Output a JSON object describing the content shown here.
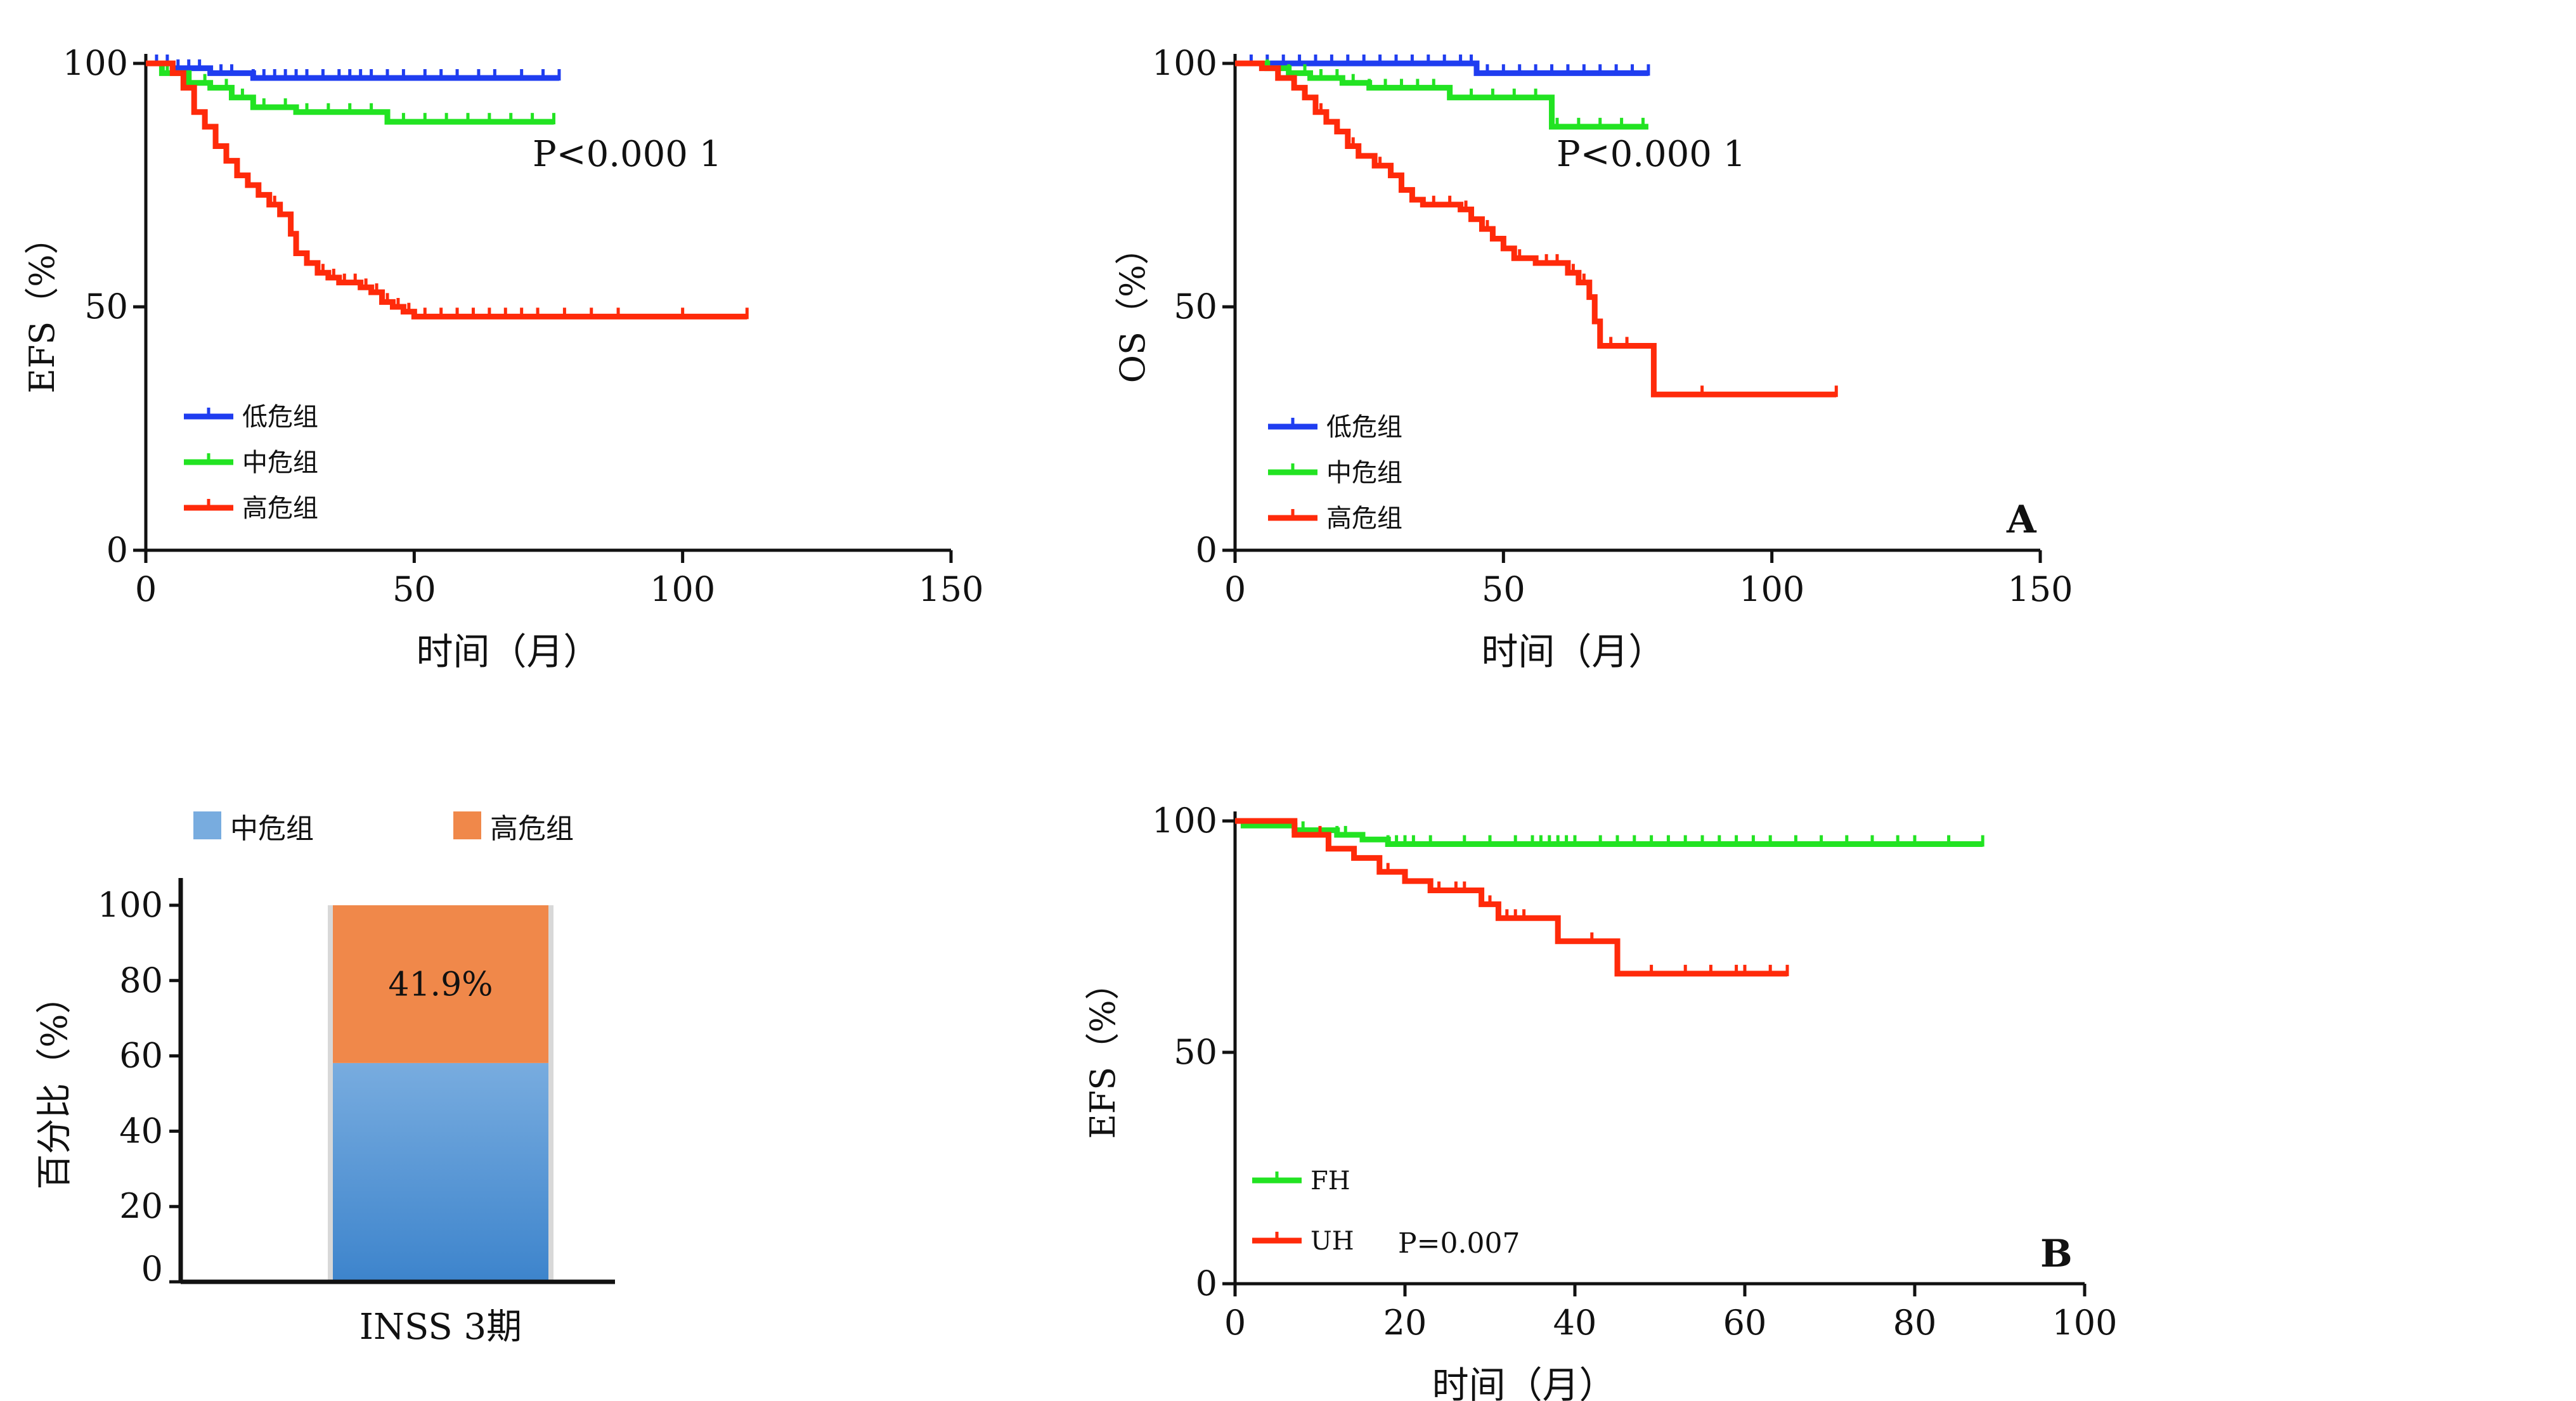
{
  "colors": {
    "low": "#1f3df0",
    "mid": "#22e322",
    "high": "#ff2a0a",
    "bar_mid_top": "#78acdf",
    "bar_mid_bottom": "#3d84cc",
    "bar_high": "#f0884a",
    "axis": "#111111"
  },
  "chart_data": [
    {
      "id": "efs_risk",
      "type": "line",
      "xlabel": "时间（月）",
      "ylabel": "EFS（%）",
      "xlim": [
        0,
        150
      ],
      "ylim": [
        0,
        100
      ],
      "xticks": [
        "0",
        "50",
        "100",
        "150"
      ],
      "yticks": [
        "0",
        "50",
        "100"
      ],
      "annotations": [
        "P<0.000 1"
      ],
      "legend_position": "lower-left",
      "series": [
        {
          "name": "低危组",
          "color_key": "low",
          "points": [
            [
              0,
              100
            ],
            [
              3,
              100
            ],
            [
              5,
              99
            ],
            [
              10,
              99
            ],
            [
              12,
              98
            ],
            [
              20,
              97
            ],
            [
              30,
              97
            ],
            [
              50,
              97
            ],
            [
              77,
              97
            ]
          ],
          "censors": [
            2,
            4,
            6,
            8,
            10,
            14,
            16,
            20,
            22,
            24,
            26,
            28,
            30,
            33,
            36,
            38,
            40,
            42,
            45,
            48,
            52,
            55,
            58,
            62,
            65,
            70,
            74,
            77
          ]
        },
        {
          "name": "中危组",
          "color_key": "mid",
          "points": [
            [
              0,
              100
            ],
            [
              3,
              98
            ],
            [
              8,
              96
            ],
            [
              12,
              95
            ],
            [
              16,
              93
            ],
            [
              20,
              91
            ],
            [
              28,
              90
            ],
            [
              35,
              90
            ],
            [
              44,
              90
            ],
            [
              45,
              88
            ],
            [
              60,
              88
            ],
            [
              76,
              88
            ]
          ],
          "censors": [
            4,
            8,
            11,
            15,
            18,
            22,
            26,
            30,
            34,
            38,
            42,
            48,
            52,
            56,
            60,
            64,
            68,
            72,
            76
          ]
        },
        {
          "name": "高危组",
          "color_key": "high",
          "points": [
            [
              0,
              100
            ],
            [
              5,
              98
            ],
            [
              7,
              95
            ],
            [
              9,
              90
            ],
            [
              11,
              87
            ],
            [
              13,
              83
            ],
            [
              15,
              80
            ],
            [
              17,
              77
            ],
            [
              19,
              75
            ],
            [
              21,
              73
            ],
            [
              23,
              71
            ],
            [
              25,
              69
            ],
            [
              27,
              65
            ],
            [
              28,
              61
            ],
            [
              30,
              59
            ],
            [
              32,
              57
            ],
            [
              34,
              56
            ],
            [
              36,
              55
            ],
            [
              40,
              54
            ],
            [
              42,
              53
            ],
            [
              44,
              51
            ],
            [
              46,
              50
            ],
            [
              48,
              49
            ],
            [
              50,
              48
            ],
            [
              112,
              48
            ]
          ],
          "censors": [
            24,
            30,
            33,
            35,
            37,
            39,
            41,
            43,
            45,
            47,
            49,
            52,
            55,
            58,
            61,
            64,
            67,
            70,
            73,
            78,
            83,
            88,
            100,
            112
          ]
        }
      ]
    },
    {
      "id": "os_risk",
      "type": "line",
      "xlabel": "时间（月）",
      "ylabel": "OS（%）",
      "xlim": [
        0,
        150
      ],
      "ylim": [
        0,
        100
      ],
      "xticks": [
        "0",
        "50",
        "100",
        "150"
      ],
      "yticks": [
        "0",
        "50",
        "100"
      ],
      "annotations": [
        "P<0.000 1",
        "A"
      ],
      "legend_position": "lower-left",
      "series": [
        {
          "name": "低危组",
          "color_key": "low",
          "points": [
            [
              0,
              100
            ],
            [
              44,
              100
            ],
            [
              45,
              98
            ],
            [
              77,
              98
            ]
          ],
          "censors": [
            3,
            6,
            9,
            12,
            15,
            18,
            21,
            24,
            27,
            30,
            33,
            36,
            39,
            42,
            44,
            47,
            50,
            53,
            56,
            59,
            62,
            65,
            68,
            71,
            74,
            77
          ]
        },
        {
          "name": "中危组",
          "color_key": "mid",
          "points": [
            [
              0,
              100
            ],
            [
              6,
              99
            ],
            [
              10,
              98
            ],
            [
              14,
              97
            ],
            [
              20,
              96
            ],
            [
              25,
              95
            ],
            [
              40,
              95
            ],
            [
              39,
              95
            ],
            [
              40,
              93
            ],
            [
              58,
              93
            ],
            [
              59,
              87
            ],
            [
              77,
              87
            ]
          ],
          "censors": [
            6,
            10,
            13,
            16,
            19,
            22,
            25,
            28,
            31,
            34,
            37,
            40,
            44,
            48,
            52,
            56,
            60,
            64,
            68,
            72,
            76
          ]
        },
        {
          "name": "高危组",
          "color_key": "high",
          "points": [
            [
              0,
              100
            ],
            [
              5,
              99
            ],
            [
              8,
              97
            ],
            [
              11,
              95
            ],
            [
              13,
              93
            ],
            [
              15,
              90
            ],
            [
              17,
              88
            ],
            [
              19,
              86
            ],
            [
              21,
              83
            ],
            [
              23,
              81
            ],
            [
              26,
              79
            ],
            [
              29,
              77
            ],
            [
              31,
              74
            ],
            [
              33,
              72
            ],
            [
              35,
              71
            ],
            [
              42,
              70
            ],
            [
              44,
              68
            ],
            [
              46,
              66
            ],
            [
              48,
              64
            ],
            [
              50,
              62
            ],
            [
              52,
              60
            ],
            [
              56,
              59
            ],
            [
              62,
              57
            ],
            [
              64,
              55
            ],
            [
              66,
              52
            ],
            [
              67,
              47
            ],
            [
              68,
              42
            ],
            [
              77,
              42
            ],
            [
              78,
              32
            ],
            [
              112,
              32
            ]
          ],
          "censors": [
            16,
            22,
            27,
            33,
            37,
            40,
            43,
            47,
            53,
            58,
            60,
            63,
            65,
            70,
            73,
            87,
            112
          ]
        }
      ]
    },
    {
      "id": "inss3_bar",
      "type": "bar",
      "xlabel": "INSS 3期",
      "ylabel": "百分比（%）",
      "ylim": [
        0,
        100
      ],
      "yticks": [
        "0",
        "20",
        "40",
        "60",
        "80",
        "100"
      ],
      "categories": [
        "INSS 3期"
      ],
      "series": [
        {
          "name": "中危组",
          "values": [
            58.1
          ]
        },
        {
          "name": "高危组",
          "values": [
            41.9
          ]
        }
      ],
      "data_labels": [
        "41.9%"
      ],
      "legend_position": "top"
    },
    {
      "id": "efs_histology",
      "type": "line",
      "xlabel": "时间（月）",
      "ylabel": "EFS（%）",
      "xlim": [
        0,
        100
      ],
      "ylim": [
        0,
        100
      ],
      "xticks": [
        "0",
        "20",
        "40",
        "60",
        "80",
        "100"
      ],
      "yticks": [
        "0",
        "50",
        "100"
      ],
      "annotations": [
        "P=0.007",
        "B"
      ],
      "legend_position": "lower-left",
      "series": [
        {
          "name": "FH",
          "color_key": "mid",
          "points": [
            [
              0,
              100
            ],
            [
              1,
              99
            ],
            [
              6,
              99
            ],
            [
              7,
              98
            ],
            [
              11,
              98
            ],
            [
              12,
              97
            ],
            [
              14,
              97
            ],
            [
              15,
              96
            ],
            [
              17,
              96
            ],
            [
              18,
              95
            ],
            [
              88,
              95
            ]
          ],
          "censors": [
            8,
            12,
            13,
            18,
            19,
            20,
            21,
            23,
            27,
            30,
            33,
            35,
            36,
            37,
            38,
            39,
            40,
            43,
            45,
            47,
            49,
            51,
            53,
            55,
            57,
            59,
            61,
            63,
            66,
            69,
            72,
            75,
            78,
            80,
            84,
            88
          ]
        },
        {
          "name": "UH",
          "color_key": "high",
          "points": [
            [
              0,
              100
            ],
            [
              6,
              100
            ],
            [
              7,
              97
            ],
            [
              10,
              97
            ],
            [
              11,
              94
            ],
            [
              13,
              94
            ],
            [
              14,
              92
            ],
            [
              16,
              92
            ],
            [
              17,
              89
            ],
            [
              19,
              89
            ],
            [
              20,
              87
            ],
            [
              22,
              87
            ],
            [
              23,
              85
            ],
            [
              28,
              85
            ],
            [
              29,
              82
            ],
            [
              30,
              82
            ],
            [
              31,
              79
            ],
            [
              38,
              79
            ],
            [
              38,
              74
            ],
            [
              45,
              74
            ],
            [
              45,
              67
            ],
            [
              65,
              67
            ]
          ],
          "censors": [
            10,
            18,
            24,
            26,
            27,
            30,
            31,
            32,
            33,
            34,
            42,
            49,
            53,
            56,
            59,
            60,
            63,
            65
          ]
        }
      ]
    }
  ]
}
